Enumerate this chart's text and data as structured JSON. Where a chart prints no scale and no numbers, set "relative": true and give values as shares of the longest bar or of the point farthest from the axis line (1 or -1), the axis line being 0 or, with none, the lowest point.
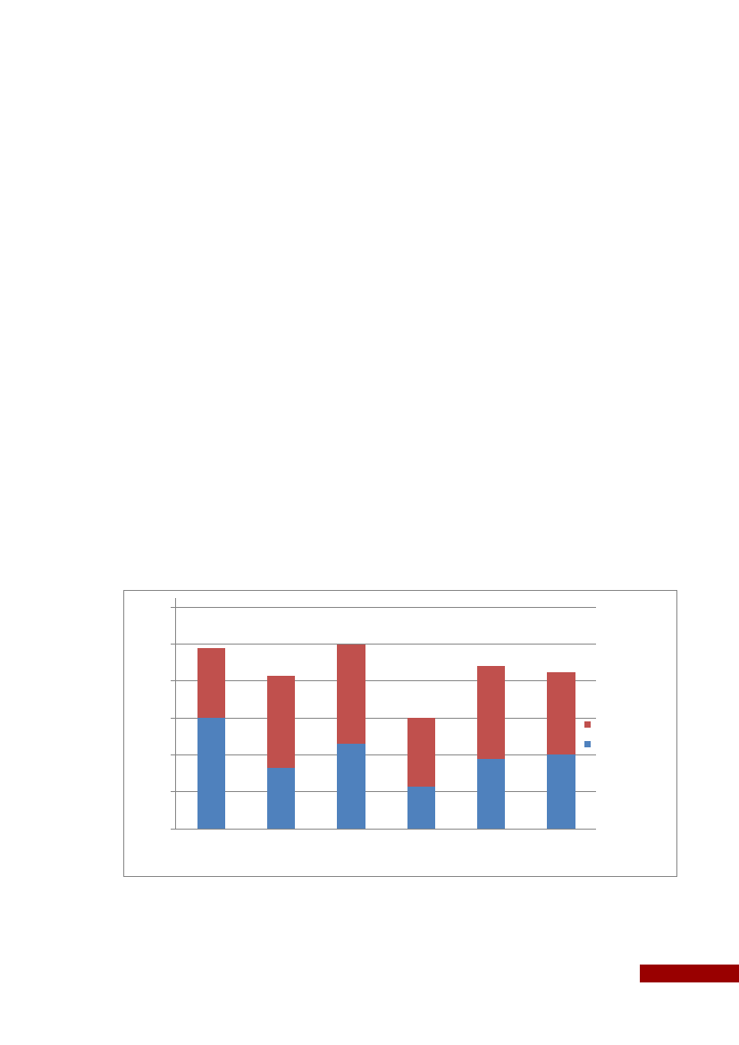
{
  "chart_data": {
    "type": "bar",
    "relative": true,
    "stacked": true,
    "categories": [
      null,
      null,
      null,
      null,
      null,
      null
    ],
    "series": [
      {
        "color": "#4f81bd",
        "values": [
          0.6,
          0.33,
          0.46,
          0.23,
          0.38,
          0.4
        ]
      },
      {
        "color": "#c0504d",
        "values": [
          0.38,
          0.5,
          0.54,
          0.37,
          0.5,
          0.45
        ]
      }
    ],
    "grid": true
  }
}
